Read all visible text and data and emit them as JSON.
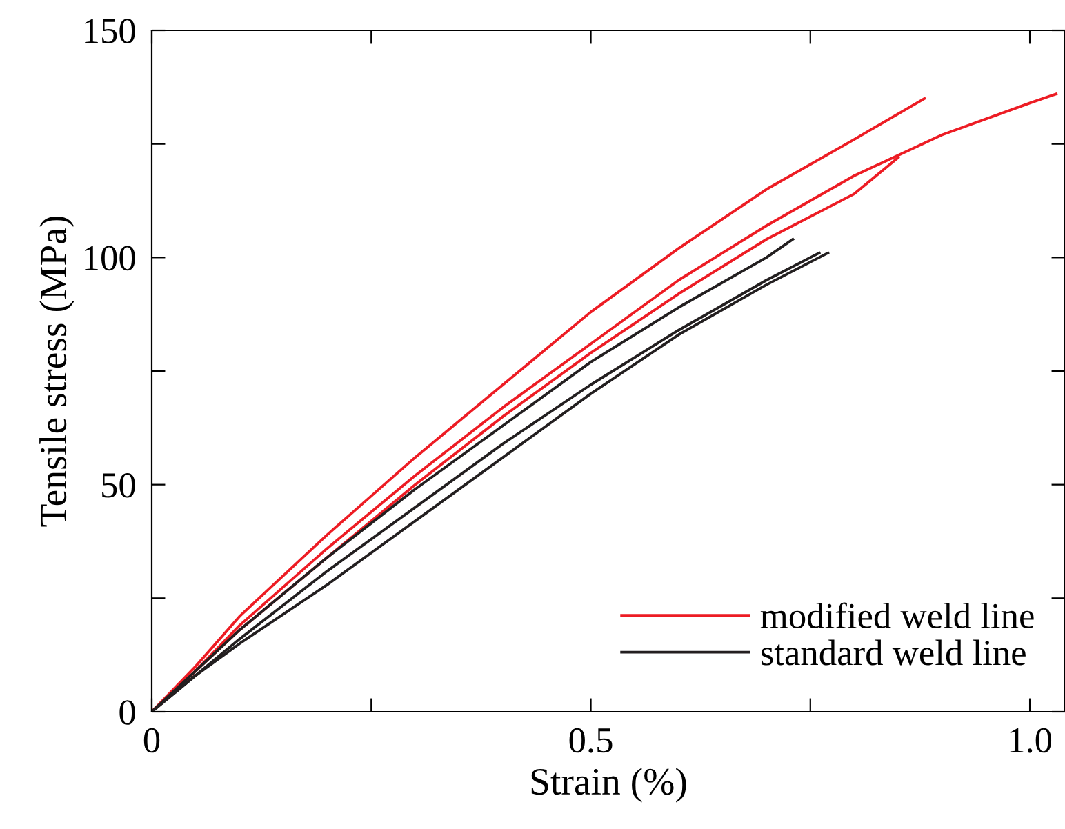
{
  "chart_data": {
    "type": "line",
    "xlabel": "Strain (%)",
    "ylabel": "Tensile stress (MPa)",
    "xlim": [
      0,
      1.04
    ],
    "ylim": [
      0,
      150
    ],
    "xticks": [
      0,
      {
        "value": 0.25,
        "label": null
      },
      0.5,
      {
        "value": 0.75,
        "label": null
      },
      {
        "value": 1.0,
        "label": "1.0"
      }
    ],
    "yticks": [
      0,
      {
        "value": 25,
        "label": null
      },
      50,
      {
        "value": 75,
        "label": null
      },
      100,
      {
        "value": 125,
        "label": null
      },
      150
    ],
    "grid": false,
    "legend": "bottom right",
    "marker": "none",
    "line_style": "solid",
    "series": [
      {
        "name": "modified weld line",
        "color": "#ed1c24",
        "x": [
          0,
          0.05,
          0.1,
          0.2,
          0.3,
          0.4,
          0.5,
          0.6,
          0.7,
          0.8,
          0.88
        ],
        "values": [
          0,
          10,
          21,
          39,
          56,
          72,
          88,
          102,
          115,
          126,
          135
        ]
      },
      {
        "color": "#ed1c24",
        "x": [
          0,
          0.05,
          0.1,
          0.2,
          0.3,
          0.4,
          0.5,
          0.6,
          0.7,
          0.8,
          0.9,
          1.0,
          1.03
        ],
        "values": [
          0,
          9,
          19,
          36,
          52,
          67,
          81,
          95,
          107,
          118,
          127,
          134,
          136
        ]
      },
      {
        "color": "#ed1c24",
        "x": [
          0,
          0.05,
          0.1,
          0.2,
          0.3,
          0.4,
          0.5,
          0.6,
          0.7,
          0.8,
          0.85
        ],
        "values": [
          0,
          9,
          18,
          34,
          50,
          65,
          79,
          92,
          104,
          114,
          122
        ]
      },
      {
        "name": "standard weld line",
        "color": "#231f20",
        "x": [
          0,
          0.05,
          0.1,
          0.2,
          0.3,
          0.4,
          0.5,
          0.6,
          0.7,
          0.73
        ],
        "values": [
          0,
          9,
          18,
          34,
          49,
          63,
          77,
          89,
          100,
          104
        ]
      },
      {
        "color": "#231f20",
        "x": [
          0,
          0.05,
          0.1,
          0.2,
          0.3,
          0.4,
          0.5,
          0.6,
          0.7,
          0.76
        ],
        "values": [
          0,
          8,
          16,
          31,
          45,
          59,
          72,
          84,
          95,
          101
        ]
      },
      {
        "color": "#231f20",
        "x": [
          0,
          0.05,
          0.1,
          0.2,
          0.3,
          0.4,
          0.5,
          0.6,
          0.7,
          0.77
        ],
        "values": [
          0,
          8,
          15,
          28,
          42,
          56,
          70,
          83,
          94,
          101
        ]
      }
    ]
  }
}
